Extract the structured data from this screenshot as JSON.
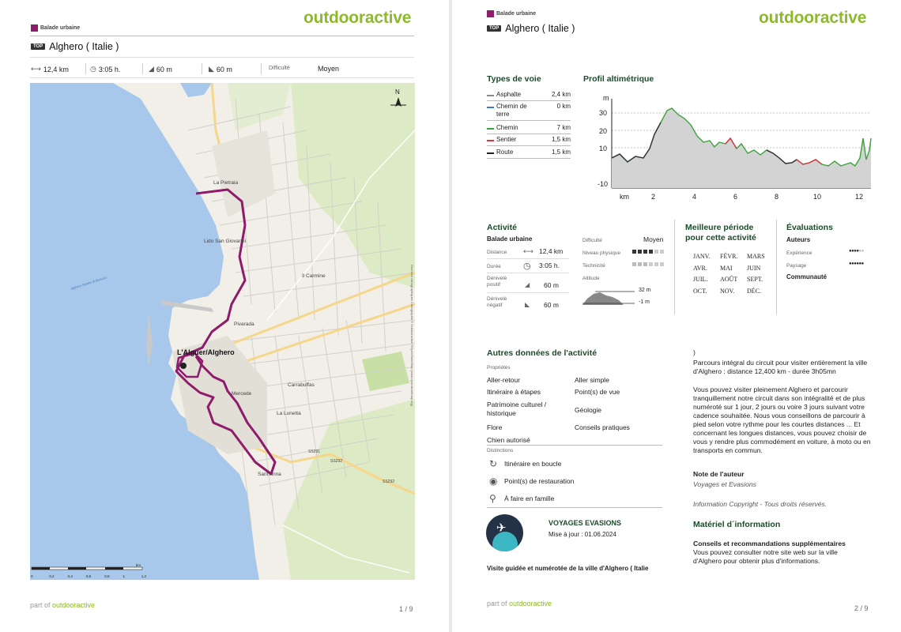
{
  "brand": "outdooractive",
  "page1": {
    "category": "Balade urbaine",
    "badge": "TOP",
    "title": "Alghero ( Italie )",
    "stats": {
      "distance": "12,4 km",
      "duration": "3:05 h.",
      "ascent": "60 m",
      "descent": "60 m",
      "difficulty_label": "Difficulté",
      "difficulty_value": "Moyen"
    },
    "map_labels": {
      "la_pietraia": "La Pietraia",
      "lido": "Lido San Giovanni",
      "il_carmine": "Il Carmine",
      "pivarada": "Pivarada",
      "alghero": "L'Alguer/Alghero",
      "mercede": "Mercede",
      "carrabuffas": "Carrabuffas",
      "la_lunetta": "La Lunetta",
      "sant_anna": "Sant'Anna",
      "ss291": "SS291",
      "sp55": "SS292",
      "sp55b": "SS292",
      "scale_ticks": [
        "0",
        "0,2",
        "0,4",
        "0,6",
        "0,8",
        "1",
        "1,2"
      ],
      "scale_unit": "km",
      "copyright": "Données cartographiques Cartographie © Outdooractive  ©OpenStreetMap (www.openstreetmap.org)",
      "coast_label": "Alghero-Ostello di Bertuzzi",
      "north": "N"
    },
    "footer_prefix": "part of",
    "footer_brand": "outdooractive",
    "page_number": "1 / 9"
  },
  "page2": {
    "category": "Balade urbaine",
    "badge": "TOP",
    "title": "Alghero ( Italie )",
    "types_title": "Types de voie",
    "types": [
      {
        "name": "Asphalte",
        "value": "2,4 km",
        "color": "#888888"
      },
      {
        "name": "Chemin de terre",
        "value": "0 km",
        "color": "#3b7bd1"
      },
      {
        "name": "Chemin",
        "value": "7 km",
        "color": "#3aa23a"
      },
      {
        "name": "Sentier",
        "value": "1,5 km",
        "color": "#d9333f"
      },
      {
        "name": "Route",
        "value": "1,5 km",
        "color": "#222222"
      }
    ],
    "profile_title": "Profil altimétrique",
    "profile": {
      "unit_y": "m",
      "unit_x": "km",
      "y_ticks": [
        "30",
        "20",
        "10",
        "-10"
      ],
      "x_ticks": [
        "2",
        "4",
        "6",
        "8",
        "10",
        "12"
      ]
    },
    "activity_title": "Activité",
    "activity_type": "Balade urbaine",
    "activity": {
      "distance_label": "Distance",
      "distance_value": "12,4  km",
      "duration_label": "Durée",
      "duration_value": "3:05  h.",
      "ascent_label": "Dénivelé positif",
      "ascent_value": "60  m",
      "descent_label": "Dénivelé négatif",
      "descent_value": "60  m",
      "difficulty_label": "Difficulté",
      "difficulty_value": "Moyen",
      "physical_label": "Niveau physique",
      "technique_label": "Technicité",
      "altitude_label": "Altitude",
      "alt_max": "32 m",
      "alt_min": "-1 m"
    },
    "period_title": "Meilleure période pour cette activité",
    "months": [
      "JANV.",
      "FÉVR.",
      "MARS",
      "AVR.",
      "MAI",
      "JUIN",
      "JUIL.",
      "AOÛT",
      "SEPT.",
      "OCT.",
      "NOV.",
      "DÉC."
    ],
    "ratings_title": "Évaluations",
    "ratings": {
      "authors": "Auteurs",
      "experience": "Expérience",
      "landscape": "Paysage",
      "community": "Communauté"
    },
    "other_title": "Autres données de l'activité",
    "properties_label": "Propriétés",
    "properties": [
      "Aller-retour",
      "Aller simple",
      "Itinéraire à étapes",
      "Point(s) de vue",
      "Patrimoine culturel / historique",
      "Géologie",
      "Flore",
      "Conseils pratiques",
      "Chien autorisé"
    ],
    "distinctions_label": "Distinctions",
    "distinctions": [
      "Itinéraire en boucle",
      "Point(s) de restauration",
      "À faire en famille"
    ],
    "author_name": "VOYAGES EVASIONS",
    "update": "Mise à jour : 01.06.2024",
    "subtitle": "Visite guidée et numérotée de la ville d'Alghero ( Italie",
    "paren": ")",
    "desc1": "Parcours intégral du circuit pour visiter entièrement la ville d'Alghero : distance 12,400 km - durée 3h05mn",
    "desc2": "Vous pouvez visiter pleinement Alghero et parcourir tranquillement notre circuit dans son intégralité et de plus numéroté sur 1 jour, 2 jours ou voire 3 jours suivant votre cadence souhaitée. Nous vous conseillons de parcourir à pied selon votre rythme pour les courtes distances ... Et concernant les longues distances, vous pouvez choisir de vous y rendre plus commodément en voiture, à moto ou en transports en commun.",
    "author_note_title": "Note de l'auteur",
    "author_note": "Voyages et Evasions",
    "copyright": "Information Copyright - Tous droits réservés.",
    "material_title": "Matériel d´information",
    "advice_title": "Conseils et recommandations supplémentaires",
    "advice": "Vous pouvez consulter notre site web sur la ville d'Alghero pour obtenir plus d'informations.",
    "footer_prefix": "part of",
    "footer_brand": "outdooractive",
    "page_number": "2 / 9"
  },
  "colors": {
    "brand": "#8cba2a",
    "route": "#8e1b6b",
    "sea": "#a7c8ea",
    "heading": "#1c4a2a"
  }
}
